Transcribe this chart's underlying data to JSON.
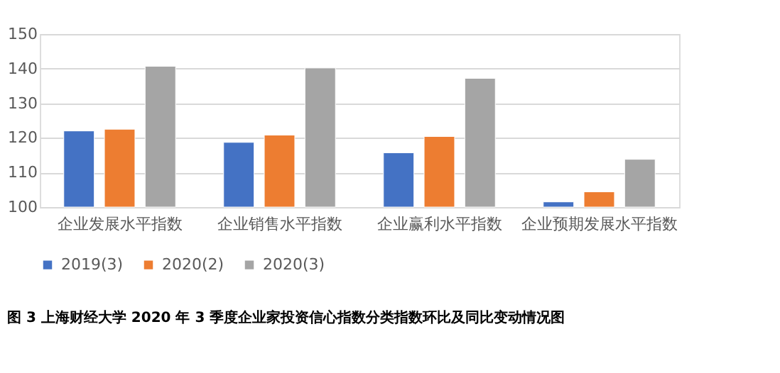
{
  "chart_data": {
    "type": "bar",
    "categories": [
      "企业发展水平指数",
      "企业销售水平指数",
      "企业赢利水平指数",
      "企业预期发展水平指数"
    ],
    "series": [
      {
        "name": "2019(3)",
        "color": "#4472c4",
        "values": [
          122.0,
          118.7,
          115.7,
          101.5
        ]
      },
      {
        "name": "2020(2)",
        "color": "#ed7d31",
        "values": [
          122.5,
          120.8,
          120.4,
          104.4
        ]
      },
      {
        "name": "2020(3)",
        "color": "#a5a5a5",
        "values": [
          140.7,
          140.2,
          137.2,
          113.8
        ]
      }
    ],
    "ylim": [
      100,
      150
    ],
    "yticks": [
      100,
      110,
      120,
      130,
      140,
      150
    ],
    "grid": "y",
    "legend": "bottom",
    "annotations": [
      "图 3    上海财经大学 2020 年 3 季度企业家投资信心指数分类指数环比及同比变动情况图"
    ]
  }
}
